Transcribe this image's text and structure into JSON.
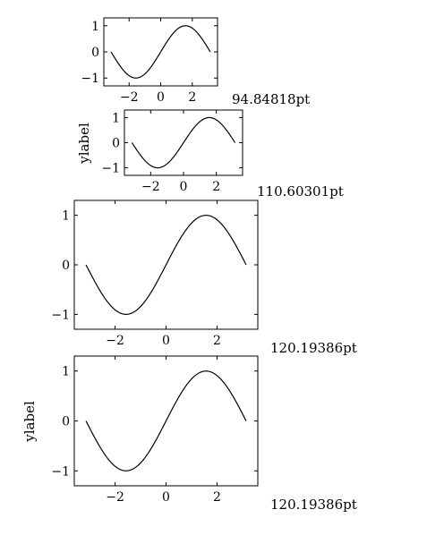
{
  "chart_data": [
    {
      "type": "line",
      "title": "",
      "xlabel": "",
      "ylabel": "",
      "xlim": [
        -3.6,
        3.6
      ],
      "ylim": [
        -1.3,
        1.3
      ],
      "xticks": [
        -2,
        0,
        2
      ],
      "yticks": [
        -1,
        0,
        1
      ],
      "xtick_labels": [
        "−2",
        "0",
        "2"
      ],
      "ytick_labels": [
        "−1",
        "0",
        "1"
      ],
      "grid": false,
      "series": [
        {
          "x_range": [
            -3.1416,
            3.1416
          ],
          "function": "sin(x)"
        }
      ],
      "annotation": "94.84818pt"
    },
    {
      "type": "line",
      "title": "",
      "xlabel": "",
      "ylabel": "ylabel",
      "xlim": [
        -3.6,
        3.6
      ],
      "ylim": [
        -1.3,
        1.3
      ],
      "xticks": [
        -2,
        0,
        2
      ],
      "yticks": [
        -1,
        0,
        1
      ],
      "xtick_labels": [
        "−2",
        "0",
        "2"
      ],
      "ytick_labels": [
        "−1",
        "0",
        "1"
      ],
      "grid": false,
      "series": [
        {
          "x_range": [
            -3.1416,
            3.1416
          ],
          "function": "sin(x)"
        }
      ],
      "annotation": "110.60301pt"
    },
    {
      "type": "line",
      "title": "",
      "xlabel": "",
      "ylabel": "",
      "xlim": [
        -3.6,
        3.6
      ],
      "ylim": [
        -1.3,
        1.3
      ],
      "xticks": [
        -2,
        0,
        2
      ],
      "yticks": [
        -1,
        0,
        1
      ],
      "xtick_labels": [
        "−2",
        "0",
        "2"
      ],
      "ytick_labels": [
        "−1",
        "0",
        "1"
      ],
      "grid": false,
      "series": [
        {
          "x_range": [
            -3.1416,
            3.1416
          ],
          "function": "sin(x)"
        }
      ],
      "annotation": "120.19386pt"
    },
    {
      "type": "line",
      "title": "",
      "xlabel": "",
      "ylabel": "ylabel",
      "xlim": [
        -3.6,
        3.6
      ],
      "ylim": [
        -1.3,
        1.3
      ],
      "xticks": [
        -2,
        0,
        2
      ],
      "yticks": [
        -1,
        0,
        1
      ],
      "xtick_labels": [
        "−2",
        "0",
        "2"
      ],
      "ytick_labels": [
        "−1",
        "0",
        "1"
      ],
      "grid": false,
      "series": [
        {
          "x_range": [
            -3.1416,
            3.1416
          ],
          "function": "sin(x)"
        }
      ],
      "annotation": "120.19386pt"
    }
  ]
}
